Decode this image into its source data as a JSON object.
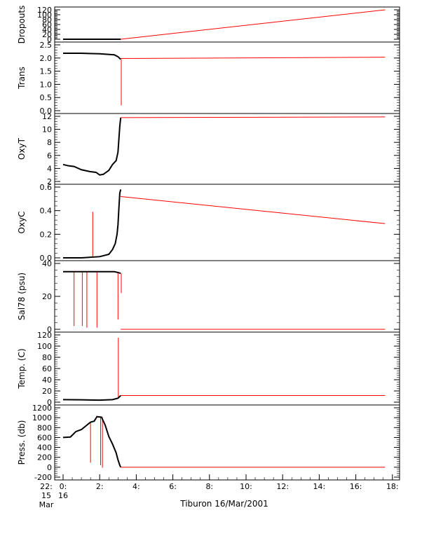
{
  "chart_data": {
    "type": "line",
    "caption": "Tiburon 16/Mar/2001",
    "x_ticks": [
      "0:",
      "2:",
      "4:",
      "6:",
      "8:",
      "10:",
      "12:",
      "14:",
      "16:",
      "18:"
    ],
    "x_left_label": [
      "22:",
      "15",
      "Mar"
    ],
    "x_left_label2": [
      "16"
    ],
    "series_colors": {
      "trace": "#000000",
      "interp": "#ff0000"
    },
    "panels": [
      {
        "ylabel": "Dropouts",
        "ylim": [
          0,
          120
        ],
        "yticks": [
          "0",
          "20",
          "40",
          "60",
          "80",
          "100",
          "120"
        ],
        "black": [
          [
            0,
            0
          ],
          [
            0.5,
            0
          ],
          [
            1,
            0
          ],
          [
            1.5,
            0
          ],
          [
            2,
            0
          ],
          [
            2.5,
            0
          ],
          [
            3.15,
            0
          ]
        ],
        "red": [
          [
            3.15,
            0
          ],
          [
            17.6,
            120
          ]
        ],
        "spikes": []
      },
      {
        "ylabel": "Trans",
        "ylim": [
          0,
          2.5
        ],
        "yticks": [
          "0.0",
          "0.5",
          "1.0",
          "1.5",
          "2.0",
          "2.5"
        ],
        "black": [
          [
            0,
            2.18
          ],
          [
            0.5,
            2.18
          ],
          [
            1,
            2.18
          ],
          [
            2,
            2.16
          ],
          [
            2.8,
            2.12
          ],
          [
            3.0,
            2.05
          ],
          [
            3.15,
            1.95
          ]
        ],
        "red": [
          [
            3.15,
            1.98
          ],
          [
            17.6,
            2.03
          ]
        ],
        "spikes": [
          [
            3.18,
            0.2
          ]
        ]
      },
      {
        "ylabel": "OxyT",
        "ylim": [
          2,
          12
        ],
        "yticks": [
          "2",
          "4",
          "6",
          "8",
          "10",
          "12"
        ],
        "black": [
          [
            0,
            4.6
          ],
          [
            0.3,
            4.4
          ],
          [
            0.6,
            4.3
          ],
          [
            1,
            3.8
          ],
          [
            1.5,
            3.5
          ],
          [
            1.8,
            3.4
          ],
          [
            2.0,
            3.0
          ],
          [
            2.2,
            3.1
          ],
          [
            2.5,
            3.7
          ],
          [
            2.7,
            4.6
          ],
          [
            2.9,
            5.2
          ],
          [
            3.0,
            6.5
          ],
          [
            3.05,
            8.5
          ],
          [
            3.1,
            10.5
          ],
          [
            3.15,
            11.8
          ]
        ],
        "red": [
          [
            3.15,
            11.8
          ],
          [
            17.6,
            11.9
          ]
        ],
        "spikes": []
      },
      {
        "ylabel": "OxyC",
        "ylim": [
          0,
          0.6
        ],
        "yticks": [
          "0.0",
          "0.2",
          "0.4",
          "0.6"
        ],
        "black": [
          [
            0,
            0.0
          ],
          [
            1,
            0.0
          ],
          [
            2,
            0.01
          ],
          [
            2.5,
            0.03
          ],
          [
            2.7,
            0.07
          ],
          [
            2.85,
            0.12
          ],
          [
            2.95,
            0.2
          ],
          [
            3.0,
            0.28
          ],
          [
            3.05,
            0.42
          ],
          [
            3.1,
            0.55
          ],
          [
            3.15,
            0.58
          ]
        ],
        "red": [
          [
            3.15,
            0.52
          ],
          [
            17.6,
            0.29
          ]
        ],
        "spikes": [
          [
            1.62,
            0.39
          ]
        ]
      },
      {
        "ylabel": "Sal78 (psu)",
        "ylim": [
          0,
          40
        ],
        "yticks": [
          "0",
          "20",
          "40"
        ],
        "black": [
          [
            0,
            35
          ],
          [
            1,
            35
          ],
          [
            2,
            35
          ],
          [
            2.8,
            35
          ],
          [
            3.0,
            34.5
          ],
          [
            3.15,
            34
          ]
        ],
        "red": [
          [
            3.15,
            0
          ],
          [
            17.6,
            0
          ]
        ],
        "spikes": [
          [
            0.6,
            2
          ],
          [
            1.05,
            2
          ],
          [
            1.3,
            1
          ],
          [
            1.85,
            1
          ],
          [
            3.0,
            6
          ],
          [
            3.18,
            22
          ]
        ]
      },
      {
        "ylabel": "Temp. (C)",
        "ylim": [
          0,
          120
        ],
        "yticks": [
          "0",
          "20",
          "40",
          "60",
          "80",
          "100",
          "120"
        ],
        "black": [
          [
            0,
            4.6
          ],
          [
            1,
            4.2
          ],
          [
            2,
            3.6
          ],
          [
            2.7,
            4.6
          ],
          [
            3.0,
            7
          ],
          [
            3.15,
            11.8
          ]
        ],
        "red": [
          [
            3.15,
            11.8
          ],
          [
            17.6,
            11.8
          ]
        ],
        "spikes": [
          [
            3.02,
            115
          ]
        ]
      },
      {
        "ylabel": "Press. (db)",
        "ylim": [
          -200,
          1200
        ],
        "yticks": [
          "-200",
          "0",
          "200",
          "400",
          "600",
          "800",
          "1000",
          "1200"
        ],
        "black": [
          [
            0,
            600
          ],
          [
            0.4,
            610
          ],
          [
            0.7,
            720
          ],
          [
            1.0,
            760
          ],
          [
            1.3,
            850
          ],
          [
            1.5,
            910
          ],
          [
            1.7,
            930
          ],
          [
            1.85,
            1020
          ],
          [
            2.1,
            1010
          ],
          [
            2.3,
            850
          ],
          [
            2.5,
            620
          ],
          [
            2.7,
            470
          ],
          [
            2.9,
            290
          ],
          [
            3.0,
            150
          ],
          [
            3.1,
            40
          ],
          [
            3.15,
            0
          ]
        ],
        "red": [
          [
            3.15,
            0
          ],
          [
            17.6,
            0
          ]
        ],
        "spikes": [
          [
            1.5,
            90
          ],
          [
            2.05,
            40
          ],
          [
            2.15,
            -10
          ]
        ]
      }
    ]
  }
}
